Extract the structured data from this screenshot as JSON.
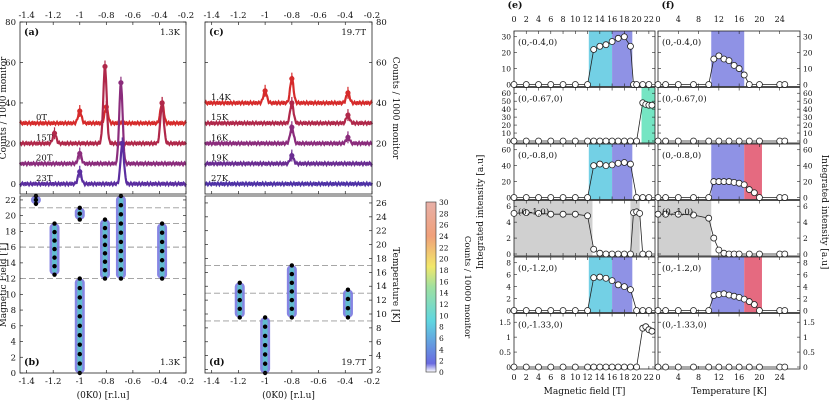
{
  "chart_data": [
    {
      "type": "line",
      "panel": "a",
      "title": "(a)",
      "annotation": "1.3K",
      "xlabel": "(0K0) [r.l.u]",
      "ylabel": "Counts / 1000 monitor",
      "xlim": [
        -1.45,
        -0.2
      ],
      "ylim": [
        -5,
        80
      ],
      "xticks": [
        "-1.4",
        "-1.2",
        "-1",
        "-0.8",
        "-0.6",
        "-0.4",
        "-0.2"
      ],
      "yticks": [
        "0",
        "20",
        "40",
        "60",
        "80"
      ],
      "series": [
        {
          "name": "0T",
          "color": "#d62b2b",
          "offset": 30,
          "peaks": [
            [
              -1.0,
              6
            ],
            [
              -0.8,
              8
            ],
            [
              -0.38,
              10
            ]
          ]
        },
        {
          "name": "15T",
          "color": "#b0284a",
          "offset": 20,
          "peaks": [
            [
              -1.19,
              5
            ],
            [
              -0.81,
              38
            ],
            [
              -0.38,
              20
            ]
          ]
        },
        {
          "name": "20T",
          "color": "#8b2c7c",
          "offset": 10,
          "peaks": [
            [
              -1.0,
              5
            ],
            [
              -0.69,
              40
            ]
          ]
        },
        {
          "name": "23T",
          "color": "#5b2ea0",
          "offset": 0,
          "peaks": [
            [
              -1.0,
              6
            ],
            [
              -0.68,
              20
            ]
          ]
        }
      ]
    },
    {
      "type": "line",
      "panel": "c",
      "title": "(c)",
      "annotation": "19.7T",
      "xlabel": "(0K0) [r.l.u]",
      "ylabel": "",
      "xlim": [
        -1.45,
        -0.2
      ],
      "ylim": [
        -5,
        80
      ],
      "xticks": [
        "-1.4",
        "-1.2",
        "-1",
        "-0.8",
        "-0.6",
        "-0.4",
        "-0.2"
      ],
      "yticks": [
        "0",
        "20",
        "40",
        "60",
        "80"
      ],
      "series": [
        {
          "name": "1.4K",
          "color": "#d62b2b",
          "offset": 40,
          "peaks": [
            [
              -1.0,
              6
            ],
            [
              -0.8,
              12
            ],
            [
              -0.38,
              5
            ]
          ]
        },
        {
          "name": "15K",
          "color": "#b0284a",
          "offset": 30,
          "peaks": [
            [
              -0.8,
              10
            ],
            [
              -0.38,
              4
            ]
          ]
        },
        {
          "name": "16K",
          "color": "#8b2c7c",
          "offset": 20,
          "peaks": [
            [
              -0.8,
              8
            ],
            [
              -0.38,
              3
            ]
          ]
        },
        {
          "name": "19K",
          "color": "#6a2d92",
          "offset": 10,
          "peaks": [
            [
              -0.8,
              4
            ]
          ]
        },
        {
          "name": "27K",
          "color": "#4f32a6",
          "offset": 0,
          "peaks": []
        }
      ]
    },
    {
      "type": "heatmap",
      "panel": "b",
      "title": "(b)",
      "annotation": "1.3K",
      "xlabel": "(0K0) [r.l.u]",
      "ylabel": "Magnetic Field [T]",
      "xlim": [
        -1.45,
        -0.2
      ],
      "ylim": [
        0,
        22.5
      ],
      "yticks": [
        "0",
        "2",
        "4",
        "6",
        "8",
        "10",
        "12",
        "14",
        "16",
        "18",
        "20",
        "22"
      ],
      "dashed_levels": [
        12,
        16,
        19,
        21
      ],
      "ridges": [
        {
          "k": -1.33,
          "from": 21.5,
          "to": 22.5
        },
        {
          "k": -1.19,
          "from": 12.5,
          "to": 19
        },
        {
          "k": -1.0,
          "from": 0,
          "to": 12
        },
        {
          "k": -1.0,
          "from": 19.5,
          "to": 21
        },
        {
          "k": -0.81,
          "from": 12,
          "to": 19.5
        },
        {
          "k": -0.69,
          "from": 12,
          "to": 22.5
        },
        {
          "k": -0.38,
          "from": 12,
          "to": 19
        }
      ]
    },
    {
      "type": "heatmap",
      "panel": "d",
      "title": "(d)",
      "annotation": "19.7T",
      "xlabel": "(0K0) [r.l.u]",
      "ylabel": "Temperature [K]",
      "xlim": [
        -1.45,
        -0.2
      ],
      "ylim": [
        1.5,
        27
      ],
      "yticks": [
        "2",
        "4",
        "6",
        "8",
        "10",
        "12",
        "14",
        "16",
        "18",
        "20",
        "22",
        "24",
        "26"
      ],
      "dashed_levels": [
        9,
        13,
        17
      ],
      "ridges": [
        {
          "k": -1.19,
          "from": 9.5,
          "to": 14.5
        },
        {
          "k": -1.0,
          "from": 1.5,
          "to": 9.5
        },
        {
          "k": -0.8,
          "from": 9.5,
          "to": 17
        },
        {
          "k": -0.38,
          "from": 9.5,
          "to": 13.5
        }
      ]
    },
    {
      "type": "scatter",
      "panel": "e",
      "title": "(e)",
      "xlabel": "Magnetic field [T]",
      "ylabel": "Integrated intensity [a.u]",
      "xlim": [
        0,
        23
      ],
      "xticks": [
        "0",
        "2",
        "4",
        "6",
        "8",
        "10",
        "12",
        "14",
        "16",
        "18",
        "20",
        "22"
      ],
      "series": [
        {
          "name": "(0,-0.4,0)",
          "ylim": [
            0,
            30
          ],
          "yticks": [
            "0",
            "10",
            "20",
            "30"
          ],
          "bands": [
            {
              "from": 12.2,
              "to": 16,
              "color": "#5ac8e0"
            },
            {
              "from": 16,
              "to": 19.3,
              "color": "#7b7fe0"
            }
          ],
          "x": [
            0,
            2,
            4,
            6,
            8,
            10,
            12,
            13,
            14,
            15,
            16,
            17,
            18,
            19,
            19.5,
            20,
            21,
            22
          ],
          "y": [
            0,
            0,
            0,
            0,
            0,
            0,
            0,
            22,
            24,
            25,
            27,
            29,
            30,
            24,
            0,
            0,
            0,
            0
          ]
        },
        {
          "name": "(0,-0.67,0)",
          "ylim": [
            0,
            60
          ],
          "yticks": [
            "0",
            "10",
            "20",
            "30",
            "40",
            "50",
            "60"
          ],
          "bands": [
            {
              "from": 20.8,
              "to": 23,
              "color": "#5de0b8"
            }
          ],
          "x": [
            0,
            2,
            4,
            6,
            8,
            10,
            12,
            13,
            14,
            15,
            16,
            17,
            18,
            19,
            20,
            21,
            21.5,
            22,
            22.5
          ],
          "y": [
            0,
            0,
            0,
            0,
            0,
            0,
            0,
            0,
            0,
            0,
            0,
            0,
            0,
            0,
            0,
            48,
            46,
            45,
            45
          ]
        },
        {
          "name": "(0,-0.8,0)",
          "ylim": [
            0,
            60
          ],
          "yticks": [
            "0",
            "20",
            "40",
            "60"
          ],
          "bands": [
            {
              "from": 12.2,
              "to": 16,
              "color": "#5ac8e0"
            },
            {
              "from": 16,
              "to": 19.3,
              "color": "#7b7fe0"
            }
          ],
          "x": [
            0,
            2,
            4,
            6,
            8,
            10,
            12,
            13,
            14,
            15,
            16,
            17,
            18,
            19,
            20,
            21,
            22
          ],
          "y": [
            0,
            0,
            0,
            0,
            0,
            0,
            0,
            40,
            42,
            40,
            41,
            43,
            44,
            42,
            0,
            0,
            0
          ]
        },
        {
          "name": "(0,-1,0)",
          "ylim": [
            0,
            6
          ],
          "yticks": [
            "0",
            "2",
            "4",
            "6"
          ],
          "bands": [
            {
              "from": 0,
              "to": 12.8,
              "color": "#c8c8c8"
            },
            {
              "from": 19,
              "to": 20.5,
              "color": "#c8c8c8"
            }
          ],
          "x": [
            0,
            2,
            4,
            6,
            8,
            10,
            12,
            13,
            14,
            15,
            16,
            17,
            18,
            19,
            19.5,
            20,
            20.5,
            21,
            22
          ],
          "y": [
            5.1,
            5.2,
            5.1,
            5,
            5,
            5,
            4.8,
            0.6,
            0.1,
            0,
            0,
            0,
            0,
            0,
            5.2,
            5.3,
            5.1,
            0,
            0
          ]
        },
        {
          "name": "(0,-1.2,0)",
          "ylim": [
            0,
            8
          ],
          "yticks": [
            "0",
            "2",
            "4",
            "6",
            "8"
          ],
          "bands": [
            {
              "from": 12.2,
              "to": 16,
              "color": "#5ac8e0"
            },
            {
              "from": 16,
              "to": 19.3,
              "color": "#7b7fe0"
            }
          ],
          "x": [
            0,
            2,
            4,
            6,
            8,
            10,
            12,
            13,
            14,
            15,
            16,
            17,
            18,
            19,
            20,
            21,
            22
          ],
          "y": [
            0,
            0,
            0,
            0,
            0,
            0,
            0,
            5.5,
            5.6,
            5.4,
            5,
            4.3,
            4,
            3.5,
            0,
            0,
            0
          ]
        },
        {
          "name": "(0,-1.33,0)",
          "ylim": [
            0,
            1.6
          ],
          "yticks": [
            "0",
            "0.5",
            "1",
            "1.5"
          ],
          "bands": [],
          "x": [
            0,
            2,
            4,
            6,
            8,
            10,
            12,
            13,
            14,
            15,
            16,
            17,
            18,
            19,
            20,
            21,
            21.5,
            22,
            22.5
          ],
          "y": [
            0,
            0,
            0,
            0,
            0,
            0,
            0,
            0,
            0,
            0,
            0,
            0,
            0,
            0,
            0,
            1.3,
            1.35,
            1.25,
            1.2
          ]
        }
      ]
    },
    {
      "type": "scatter",
      "panel": "f",
      "title": "(f)",
      "xlabel": "Temperature [K]",
      "ylabel": "Integrated intensity [a.u]",
      "xlim": [
        0,
        28
      ],
      "xticks": [
        "0",
        "4",
        "8",
        "12",
        "16",
        "20",
        "24"
      ],
      "series": [
        {
          "name": "(0,-0.4,0)",
          "ylim": [
            0,
            30
          ],
          "yticks": [
            "0",
            "10",
            "20",
            "30"
          ],
          "bands": [
            {
              "from": 10.5,
              "to": 17,
              "color": "#7b7fe0"
            }
          ],
          "x": [
            0,
            1.5,
            4,
            7,
            10,
            11,
            12,
            13,
            14,
            15,
            16,
            17,
            18,
            20,
            24,
            25
          ],
          "y": [
            0,
            0,
            0,
            0,
            0,
            16,
            18,
            16,
            15,
            12,
            10,
            6,
            0,
            0,
            0,
            0
          ]
        },
        {
          "name": "(0,-0.67,0)",
          "ylim": [
            0,
            60
          ],
          "yticks": [
            "0",
            "10",
            "20",
            "30",
            "40",
            "50",
            "60"
          ],
          "bands": [],
          "x": [
            0,
            1.5,
            4,
            7,
            10,
            12,
            14,
            16,
            18,
            20,
            24,
            25
          ],
          "y": [
            0,
            0,
            0,
            0,
            0,
            0,
            0,
            0,
            0,
            0,
            0,
            0
          ]
        },
        {
          "name": "(0,-0.8,0)",
          "ylim": [
            0,
            60
          ],
          "yticks": [
            "0",
            "20",
            "40",
            "60"
          ],
          "bands": [
            {
              "from": 10.5,
              "to": 17,
              "color": "#7b7fe0"
            },
            {
              "from": 17,
              "to": 20.5,
              "color": "#e0506a"
            }
          ],
          "x": [
            0,
            1.5,
            4,
            7,
            10,
            11,
            12,
            13,
            14,
            15,
            16,
            17,
            18,
            19,
            20,
            24,
            25
          ],
          "y": [
            0,
            0,
            0,
            0,
            0,
            20,
            20,
            20,
            20,
            19,
            18,
            16,
            10,
            6,
            0,
            0,
            0
          ]
        },
        {
          "name": "(0,-1,0)",
          "ylim": [
            0,
            6
          ],
          "yticks": [
            "0",
            "2",
            "4",
            "6"
          ],
          "bands": [
            {
              "from": 0,
              "to": 10.5,
              "color": "#c8c8c8"
            }
          ],
          "x": [
            0,
            1.5,
            4,
            7,
            10,
            11,
            12,
            13,
            14,
            15,
            16,
            18,
            20,
            24,
            25
          ],
          "y": [
            5,
            5,
            5,
            4.9,
            4.5,
            2,
            0.5,
            0.1,
            0,
            0,
            0,
            0,
            0,
            0,
            0
          ]
        },
        {
          "name": "(0,-1.2,0)",
          "ylim": [
            0,
            8
          ],
          "yticks": [
            "0",
            "2",
            "4",
            "6",
            "8"
          ],
          "bands": [
            {
              "from": 10.5,
              "to": 17,
              "color": "#7b7fe0"
            },
            {
              "from": 17,
              "to": 20.5,
              "color": "#e0506a"
            }
          ],
          "x": [
            0,
            1.5,
            4,
            7,
            10,
            11,
            12,
            13,
            14,
            15,
            16,
            17,
            18,
            19,
            20,
            24,
            25
          ],
          "y": [
            0,
            0,
            0,
            0,
            0,
            2.5,
            2.7,
            2.8,
            2.6,
            2.4,
            2.2,
            1.9,
            1.5,
            1,
            0,
            0,
            0
          ]
        },
        {
          "name": "(0,-1.33,0)",
          "ylim": [
            0,
            1.6
          ],
          "yticks": [
            "0",
            "0.5",
            "1",
            "1.5"
          ],
          "bands": [],
          "x": [
            0,
            1.5,
            4,
            7,
            10,
            12,
            14,
            16,
            18,
            20,
            24,
            25
          ],
          "y": [
            0,
            0,
            0,
            0,
            0,
            0,
            0,
            0,
            0,
            0,
            0,
            0
          ]
        }
      ]
    },
    {
      "type": "colorbar",
      "label": "Counts / 10000 monitor",
      "ticks": [
        "0",
        "2",
        "4",
        "6",
        "8",
        "10",
        "12",
        "14",
        "16",
        "18",
        "20",
        "22",
        "24",
        "26",
        "28",
        "30"
      ]
    }
  ]
}
